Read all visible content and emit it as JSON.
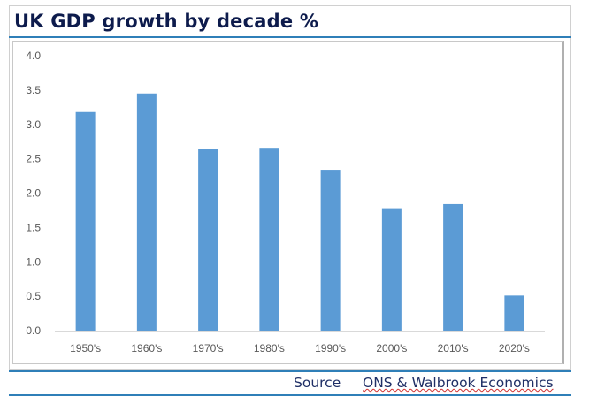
{
  "title": "UK GDP growth by decade %",
  "source": {
    "label": "Source",
    "value": "ONS & Walbrook Economics"
  },
  "chart_data": {
    "type": "bar",
    "title": "UK GDP growth by decade %",
    "categories": [
      "1950's",
      "1960's",
      "1970's",
      "1980's",
      "1990's",
      "2000's",
      "2010's",
      "2020's"
    ],
    "values": [
      3.18,
      3.45,
      2.64,
      2.66,
      2.34,
      1.78,
      1.84,
      0.51
    ],
    "ylim": [
      0,
      4.0
    ],
    "yticks": [
      "0.0",
      "0.5",
      "1.0",
      "1.5",
      "2.0",
      "2.5",
      "3.0",
      "3.5",
      "4.0"
    ],
    "xlabel": "",
    "ylabel": "",
    "grid": false,
    "legend": "none",
    "bar_color": "#5b9bd5"
  }
}
